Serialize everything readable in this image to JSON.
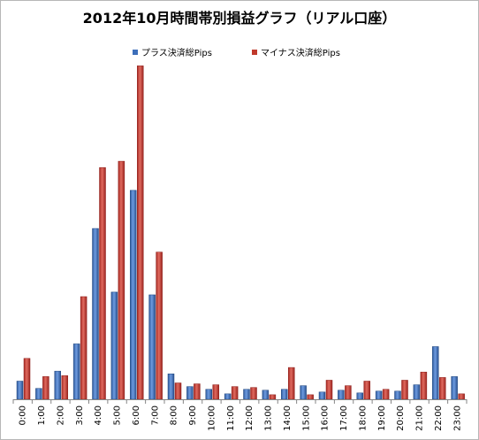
{
  "chart_data": {
    "type": "bar",
    "title": "2012年10月時間帯別損益グラフ（リアル口座）",
    "xlabel": "",
    "ylabel": "",
    "categories": [
      "0:00",
      "1:00",
      "2:00",
      "3:00",
      "4:00",
      "5:00",
      "6:00",
      "7:00",
      "8:00",
      "9:00",
      "10:00",
      "11:00",
      "12:00",
      "13:00",
      "14:00",
      "15:00",
      "16:00",
      "17:00",
      "18:00",
      "19:00",
      "20:00",
      "21:00",
      "22:00",
      "23:00"
    ],
    "series": [
      {
        "name": "プラス決済総Pips",
        "color": "#3d6fba",
        "values": [
          20,
          12,
          31,
          61,
          188,
          118,
          230,
          115,
          28,
          14,
          11,
          6,
          11,
          10,
          11,
          15,
          8,
          10,
          7,
          9,
          9,
          16,
          58,
          25
        ]
      },
      {
        "name": "マイナス決済総Pips",
        "color": "#c0392b",
        "values": [
          45,
          25,
          26,
          113,
          255,
          262,
          367,
          162,
          18,
          17,
          16,
          14,
          13,
          5,
          35,
          5,
          21,
          15,
          20,
          11,
          21,
          30,
          24,
          6
        ]
      }
    ],
    "ylim": [
      0,
      380
    ],
    "grid": false,
    "legend_position": "top"
  }
}
